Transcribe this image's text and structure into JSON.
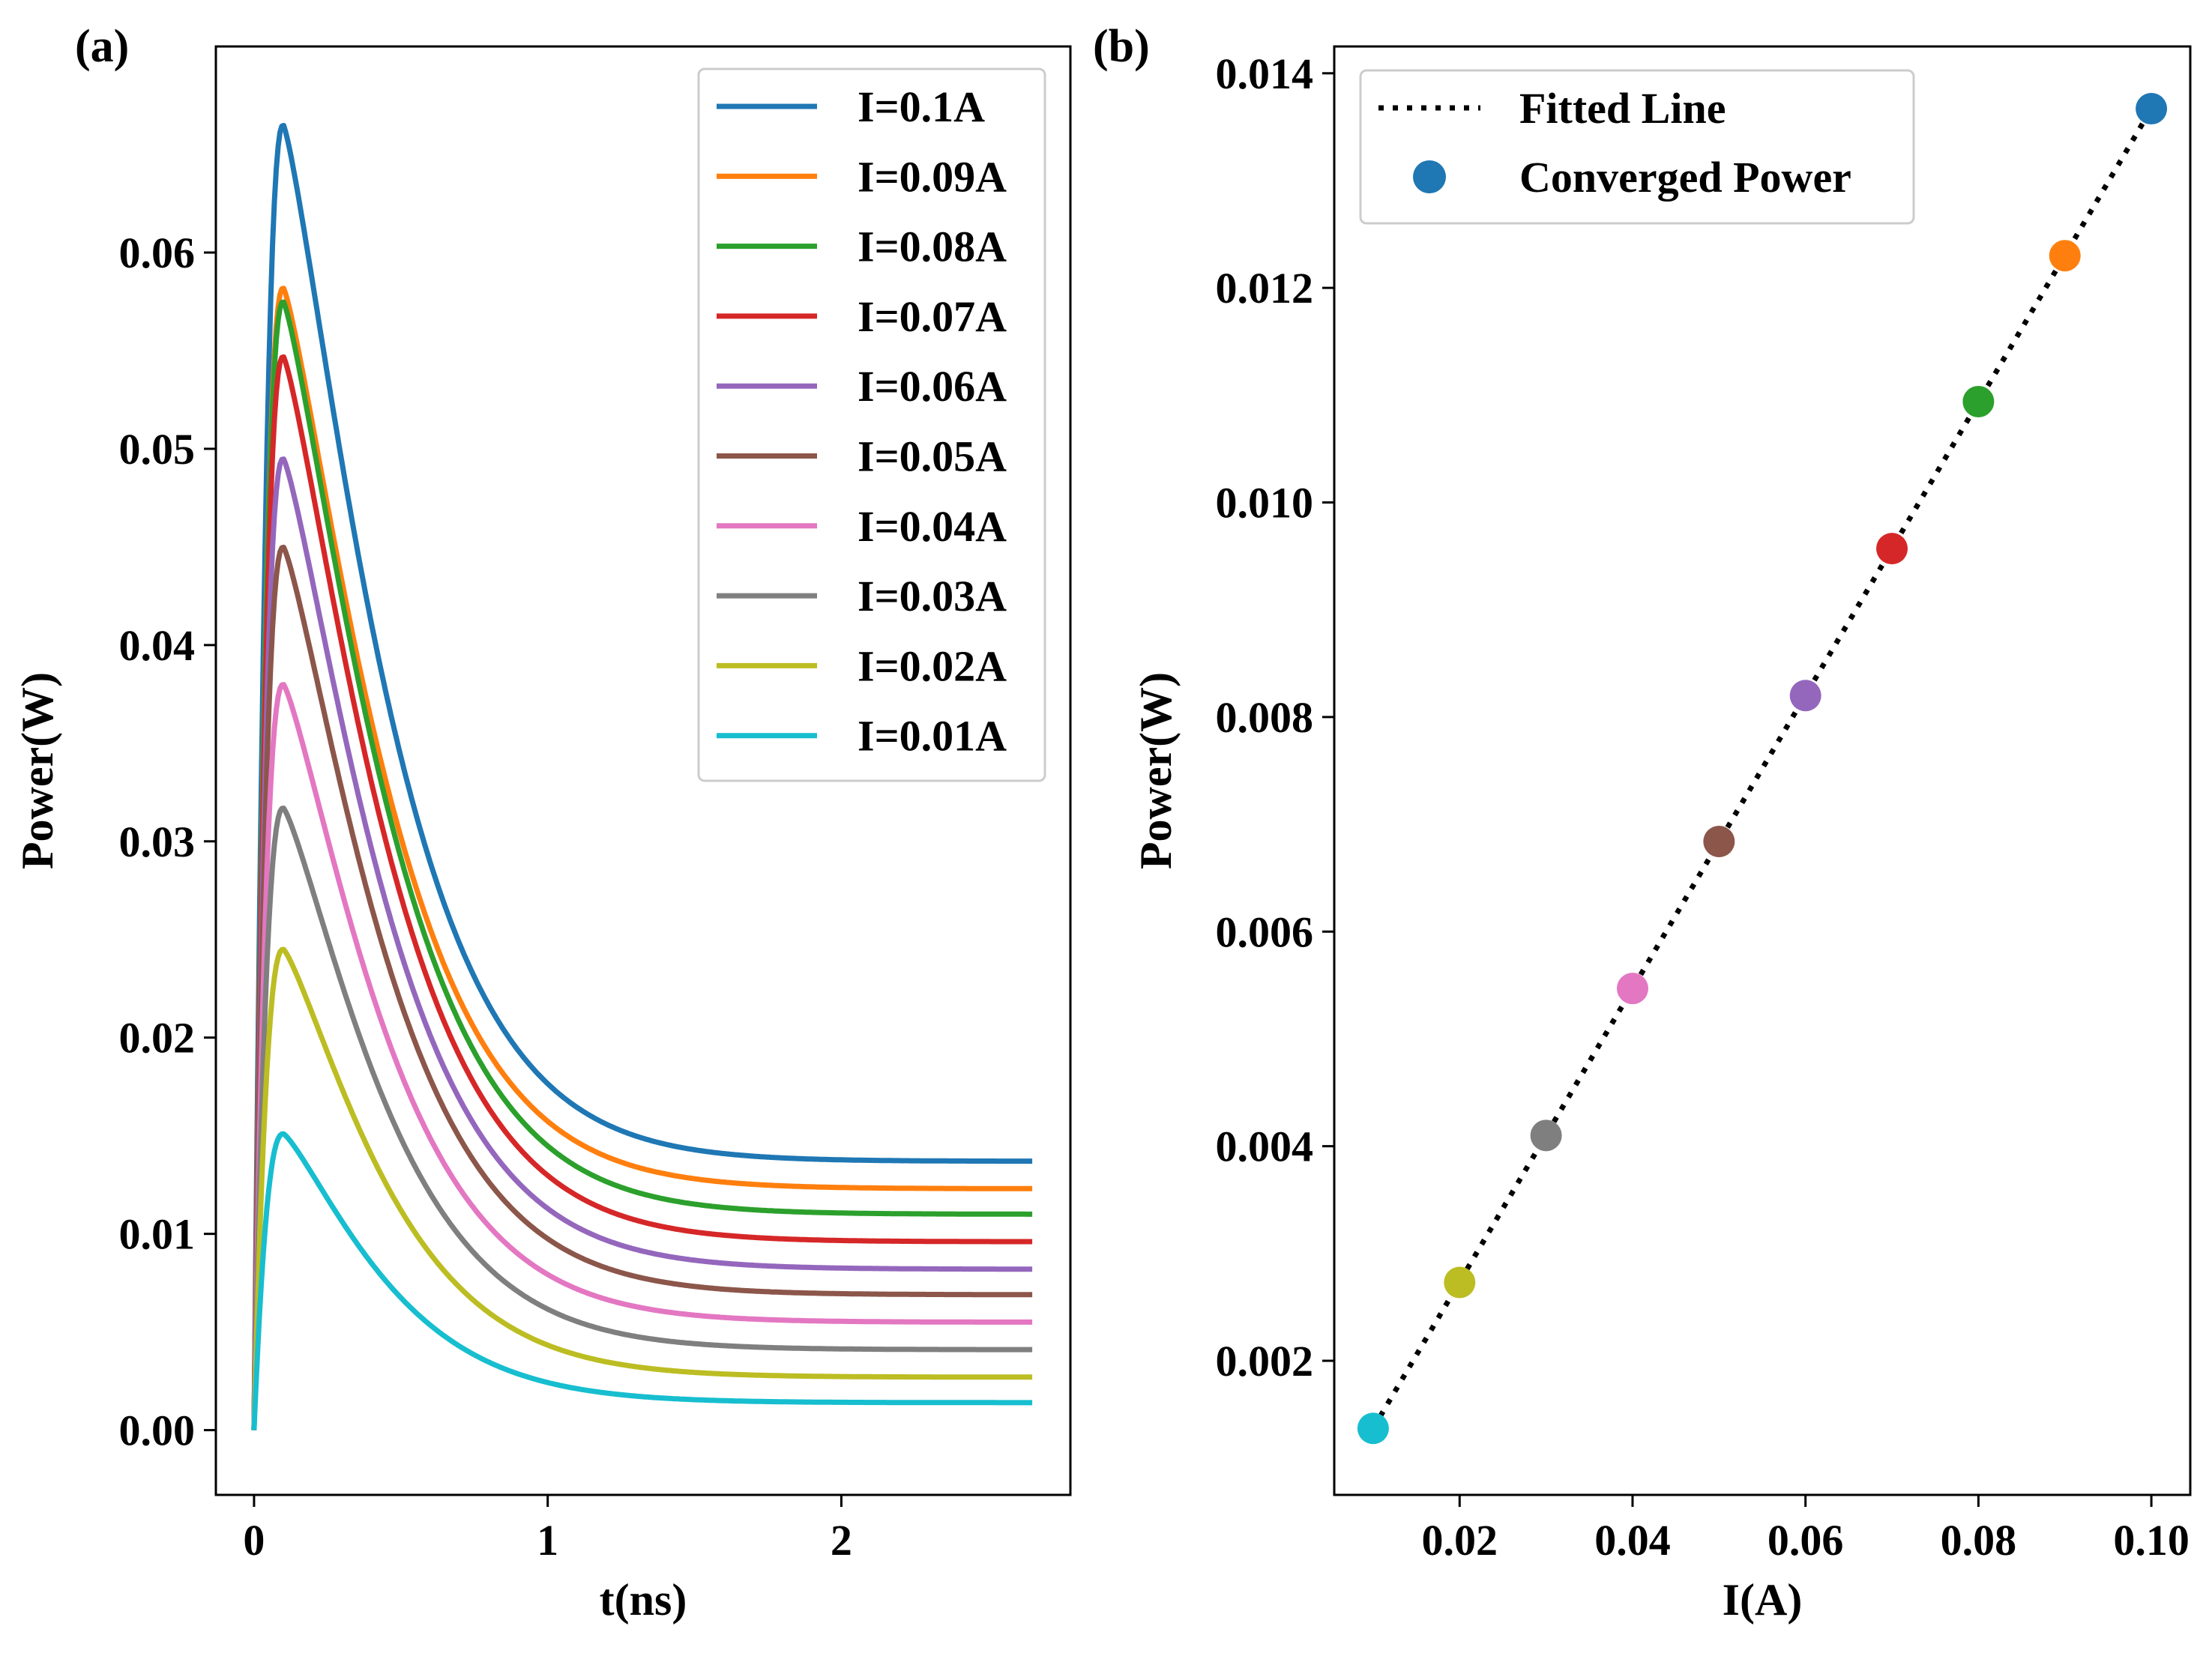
{
  "chart_data": [
    {
      "panel_label": "(a)",
      "type": "line",
      "xlabel": "t(ns)",
      "ylabel": "Power(W)",
      "xlim": [
        -0.13,
        2.78
      ],
      "ylim": [
        -0.0033,
        0.0705
      ],
      "xticks": [
        0,
        1,
        2
      ],
      "xtick_labels": [
        "0",
        "1",
        "2"
      ],
      "yticks": [
        0.0,
        0.01,
        0.02,
        0.03,
        0.04,
        0.05,
        0.06
      ],
      "ytick_labels": [
        "0.00",
        "0.01",
        "0.02",
        "0.03",
        "0.04",
        "0.05",
        "0.06"
      ],
      "grid": false,
      "legend_position": "top-right",
      "x_range": [
        0,
        2.65
      ],
      "peak_time": 0.1,
      "series": [
        {
          "name": "I=0.1A",
          "current": 0.1,
          "peak": 0.0665,
          "steady": 0.0137,
          "color": "#1f77b4"
        },
        {
          "name": "I=0.09A",
          "current": 0.09,
          "peak": 0.0582,
          "steady": 0.0123,
          "color": "#ff7f0e"
        },
        {
          "name": "I=0.08A",
          "current": 0.08,
          "peak": 0.0575,
          "steady": 0.011,
          "color": "#2ca02c"
        },
        {
          "name": "I=0.07A",
          "current": 0.07,
          "peak": 0.0547,
          "steady": 0.0096,
          "color": "#d62728"
        },
        {
          "name": "I=0.06A",
          "current": 0.06,
          "peak": 0.0495,
          "steady": 0.0082,
          "color": "#9467bd"
        },
        {
          "name": "I=0.05A",
          "current": 0.05,
          "peak": 0.045,
          "steady": 0.0069,
          "color": "#8c564b"
        },
        {
          "name": "I=0.04A",
          "current": 0.04,
          "peak": 0.038,
          "steady": 0.0055,
          "color": "#e377c2"
        },
        {
          "name": "I=0.03A",
          "current": 0.03,
          "peak": 0.0317,
          "steady": 0.0041,
          "color": "#7f7f7f"
        },
        {
          "name": "I=0.02A",
          "current": 0.02,
          "peak": 0.0245,
          "steady": 0.0027,
          "color": "#bcbd22"
        },
        {
          "name": "I=0.01A",
          "current": 0.01,
          "peak": 0.0151,
          "steady": 0.0014,
          "color": "#17becf"
        }
      ]
    },
    {
      "panel_label": "(b)",
      "type": "scatter",
      "xlabel": "I(A)",
      "ylabel": "Power(W)",
      "xlim": [
        0.0055,
        0.1045
      ],
      "ylim": [
        0.00075,
        0.01425
      ],
      "xticks": [
        0.02,
        0.04,
        0.06,
        0.08,
        0.1
      ],
      "xtick_labels": [
        "0.02",
        "0.04",
        "0.06",
        "0.08",
        "0.10"
      ],
      "yticks": [
        0.002,
        0.004,
        0.006,
        0.008,
        0.01,
        0.012,
        0.014
      ],
      "ytick_labels": [
        "0.002",
        "0.004",
        "0.006",
        "0.008",
        "0.010",
        "0.012",
        "0.014"
      ],
      "grid": false,
      "legend_position": "top-left",
      "legend": {
        "line_label": "Fitted Line",
        "scatter_label": "Converged Power",
        "scatter_color": "#1f77b4"
      },
      "fit": {
        "x": [
          0.01,
          0.1
        ],
        "y": [
          0.00137,
          0.01367
        ]
      },
      "points": [
        {
          "x": 0.01,
          "y": 0.00137,
          "color": "#17becf"
        },
        {
          "x": 0.02,
          "y": 0.00273,
          "color": "#bcbd22"
        },
        {
          "x": 0.03,
          "y": 0.0041,
          "color": "#7f7f7f"
        },
        {
          "x": 0.04,
          "y": 0.00547,
          "color": "#e377c2"
        },
        {
          "x": 0.05,
          "y": 0.00684,
          "color": "#8c564b"
        },
        {
          "x": 0.06,
          "y": 0.0082,
          "color": "#9467bd"
        },
        {
          "x": 0.07,
          "y": 0.00957,
          "color": "#d62728"
        },
        {
          "x": 0.08,
          "y": 0.01094,
          "color": "#2ca02c"
        },
        {
          "x": 0.09,
          "y": 0.0123,
          "color": "#ff7f0e"
        },
        {
          "x": 0.1,
          "y": 0.01367,
          "color": "#1f77b4"
        }
      ]
    }
  ]
}
